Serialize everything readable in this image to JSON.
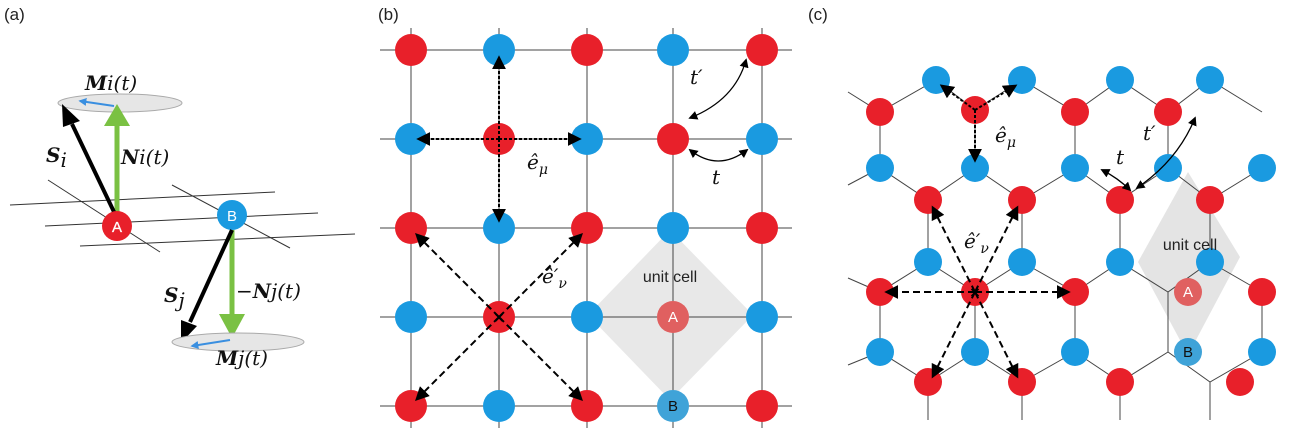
{
  "panels": {
    "a": {
      "label": "(a)",
      "spin_i": "S",
      "spin_i_sub": "i",
      "neel_i": "N",
      "neel_i_rest": "i(t)",
      "mag_i": "M",
      "mag_i_rest": "i(t)",
      "spin_j": "S",
      "spin_j_sub": "j",
      "neel_j_minus": "−",
      "neel_j": "N",
      "neel_j_rest": "j(t)",
      "mag_j": "M",
      "mag_j_rest": "j(t)",
      "site_a": "A",
      "site_b": "B"
    },
    "b": {
      "label": "(b)",
      "t_prime": "t′",
      "t": "t",
      "e_mu": "ê",
      "e_mu_sub": "μ",
      "e_nu": "ê′",
      "e_nu_sub": "ν",
      "unit_cell": "unit cell",
      "site_a": "A",
      "site_b": "B"
    },
    "c": {
      "label": "(c)",
      "t_prime": "t′",
      "t": "t",
      "e_mu": "ê",
      "e_mu_sub": "μ",
      "e_nu": "ê′",
      "e_nu_sub": "ν",
      "unit_cell": "unit cell",
      "site_a": "A",
      "site_b": "B"
    }
  },
  "colors": {
    "sublattice_a": "#e8202a",
    "sublattice_b": "#1a9ae0",
    "neel_arrow": "#7ac143",
    "spin_arrow": "#000000",
    "unit_cell_fill": "#d9d9d9",
    "magnetization_arrow": "#3a8fe0"
  }
}
